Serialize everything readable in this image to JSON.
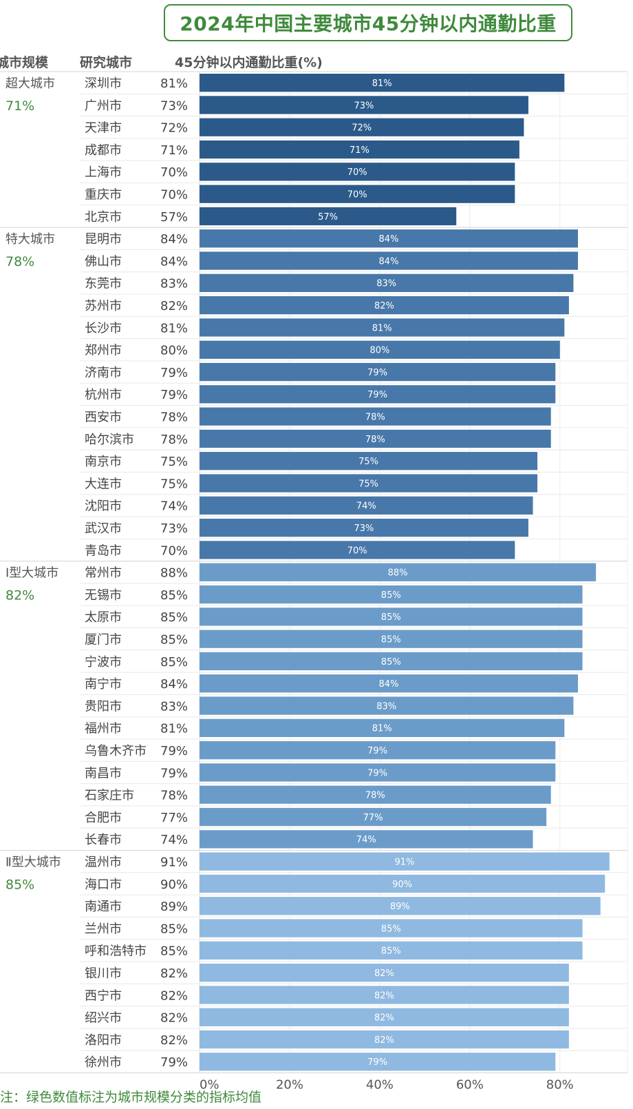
{
  "title": "2024年中国主要城市45分钟以内通勤比重",
  "headers": {
    "scale": "城市规模",
    "city": "研究城市",
    "measure": "45分钟以内通勤比重(%)"
  },
  "footnote": "注：绿色数值标注为城市规模分类的指标均值",
  "colors": {
    "accent_green": "#3f8a3c",
    "group_bars": [
      "#2b5a8a",
      "#4878a9",
      "#6b9cc9",
      "#8fb9e0"
    ]
  },
  "chart_data": {
    "type": "bar",
    "orientation": "horizontal",
    "xlim": [
      0,
      95
    ],
    "xticks": [
      "0%",
      "20%",
      "40%",
      "60%",
      "80%"
    ],
    "grid": true,
    "groups": [
      {
        "name": "超大城市",
        "mean": "71%",
        "cities": [
          "深圳市",
          "广州市",
          "天津市",
          "成都市",
          "上海市",
          "重庆市",
          "北京市"
        ],
        "values": [
          81,
          73,
          72,
          71,
          70,
          70,
          57
        ]
      },
      {
        "name": "特大城市",
        "mean": "78%",
        "cities": [
          "昆明市",
          "佛山市",
          "东莞市",
          "苏州市",
          "长沙市",
          "郑州市",
          "济南市",
          "杭州市",
          "西安市",
          "哈尔滨市",
          "南京市",
          "大连市",
          "沈阳市",
          "武汉市",
          "青岛市"
        ],
        "values": [
          84,
          84,
          83,
          82,
          81,
          80,
          79,
          79,
          78,
          78,
          75,
          75,
          74,
          73,
          70
        ]
      },
      {
        "name": "Ⅰ型大城市",
        "mean": "82%",
        "cities": [
          "常州市",
          "无锡市",
          "太原市",
          "厦门市",
          "宁波市",
          "南宁市",
          "贵阳市",
          "福州市",
          "乌鲁木齐市",
          "南昌市",
          "石家庄市",
          "合肥市",
          "长春市"
        ],
        "values": [
          88,
          85,
          85,
          85,
          85,
          84,
          83,
          81,
          79,
          79,
          78,
          77,
          74
        ]
      },
      {
        "name": "Ⅱ型大城市",
        "mean": "85%",
        "cities": [
          "温州市",
          "海口市",
          "南通市",
          "兰州市",
          "呼和浩特市",
          "银川市",
          "西宁市",
          "绍兴市",
          "洛阳市",
          "徐州市"
        ],
        "values": [
          91,
          90,
          89,
          85,
          85,
          82,
          82,
          82,
          82,
          79
        ]
      }
    ]
  }
}
